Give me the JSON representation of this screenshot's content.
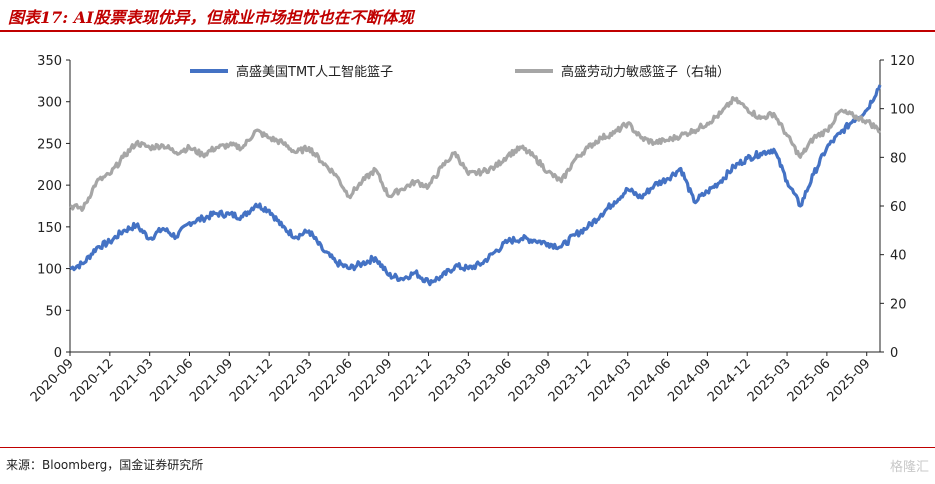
{
  "header": {
    "title": "图表17: AI股票表现优异，但就业市场担忧也在不断体现"
  },
  "footer": {
    "source": "来源：Bloomberg，国金证券研究所",
    "watermark": "格隆汇"
  },
  "colors": {
    "blue": "#4472c4",
    "gray": "#a6a6a6",
    "accent": "#c00000"
  },
  "chart_data": {
    "type": "line",
    "title": "",
    "xlabel": "",
    "ylabel": "",
    "y_left": {
      "ylim": [
        0,
        350
      ],
      "ticks": [
        "0",
        "50",
        "100",
        "150",
        "200",
        "250",
        "300",
        "350"
      ]
    },
    "y_right": {
      "ylim": [
        0,
        120
      ],
      "ticks": [
        "0",
        "20",
        "40",
        "60",
        "80",
        "100",
        "120"
      ]
    },
    "x_range": [
      "2020-09",
      "2025-10"
    ],
    "x_ticks": [
      "2020-09",
      "2020-12",
      "2021-03",
      "2021-06",
      "2021-09",
      "2021-12",
      "2022-03",
      "2022-06",
      "2022-09",
      "2022-12",
      "2023-03",
      "2023-06",
      "2023-09",
      "2023-12",
      "2024-03",
      "2024-06",
      "2024-09",
      "2024-12",
      "2025-03",
      "2025-06",
      "2025-09"
    ],
    "grid": false,
    "legend": "top-center",
    "series": [
      {
        "name": "高盛美国TMT人工智能篮子",
        "axis": "left",
        "points": [
          [
            "2020-09",
            100
          ],
          [
            "2020-10",
            106
          ],
          [
            "2020-11",
            125
          ],
          [
            "2020-12",
            132
          ],
          [
            "2021-01",
            145
          ],
          [
            "2021-02",
            152
          ],
          [
            "2021-03",
            136
          ],
          [
            "2021-04",
            148
          ],
          [
            "2021-05",
            138
          ],
          [
            "2021-06",
            155
          ],
          [
            "2021-07",
            160
          ],
          [
            "2021-08",
            166
          ],
          [
            "2021-09",
            165
          ],
          [
            "2021-10",
            162
          ],
          [
            "2021-11",
            177
          ],
          [
            "2021-12",
            170
          ],
          [
            "2022-01",
            150
          ],
          [
            "2022-02",
            138
          ],
          [
            "2022-03",
            145
          ],
          [
            "2022-04",
            123
          ],
          [
            "2022-05",
            108
          ],
          [
            "2022-06",
            100
          ],
          [
            "2022-07",
            106
          ],
          [
            "2022-08",
            113
          ],
          [
            "2022-09",
            92
          ],
          [
            "2022-10",
            88
          ],
          [
            "2022-11",
            95
          ],
          [
            "2022-12",
            84
          ],
          [
            "2023-01",
            90
          ],
          [
            "2023-02",
            103
          ],
          [
            "2023-03",
            100
          ],
          [
            "2023-04",
            106
          ],
          [
            "2023-05",
            120
          ],
          [
            "2023-06",
            133
          ],
          [
            "2023-07",
            136
          ],
          [
            "2023-08",
            134
          ],
          [
            "2023-09",
            130
          ],
          [
            "2023-10",
            126
          ],
          [
            "2023-11",
            140
          ],
          [
            "2023-12",
            150
          ],
          [
            "2024-01",
            165
          ],
          [
            "2024-02",
            180
          ],
          [
            "2024-03",
            195
          ],
          [
            "2024-04",
            185
          ],
          [
            "2024-05",
            200
          ],
          [
            "2024-06",
            208
          ],
          [
            "2024-07",
            220
          ],
          [
            "2024-08",
            180
          ],
          [
            "2024-09",
            192
          ],
          [
            "2024-10",
            205
          ],
          [
            "2024-11",
            222
          ],
          [
            "2024-12",
            232
          ],
          [
            "2025-01",
            238
          ],
          [
            "2025-02",
            243
          ],
          [
            "2025-03",
            205
          ],
          [
            "2025-04",
            175
          ],
          [
            "2025-05",
            213
          ],
          [
            "2025-06",
            245
          ],
          [
            "2025-07",
            262
          ],
          [
            "2025-08",
            278
          ],
          [
            "2025-09",
            290
          ],
          [
            "2025-10",
            320
          ]
        ]
      },
      {
        "name": "高盛劳动力敏感篮子（右轴）",
        "axis": "right",
        "points": [
          [
            "2020-09",
            60
          ],
          [
            "2020-10",
            59
          ],
          [
            "2020-11",
            70
          ],
          [
            "2020-12",
            73
          ],
          [
            "2021-01",
            80
          ],
          [
            "2021-02",
            86
          ],
          [
            "2021-03",
            84
          ],
          [
            "2021-04",
            85
          ],
          [
            "2021-05",
            82
          ],
          [
            "2021-06",
            84
          ],
          [
            "2021-07",
            81
          ],
          [
            "2021-08",
            84
          ],
          [
            "2021-09",
            85
          ],
          [
            "2021-10",
            84
          ],
          [
            "2021-11",
            91
          ],
          [
            "2021-12",
            88
          ],
          [
            "2022-01",
            86
          ],
          [
            "2022-02",
            82
          ],
          [
            "2022-03",
            84
          ],
          [
            "2022-04",
            78
          ],
          [
            "2022-05",
            73
          ],
          [
            "2022-06",
            64
          ],
          [
            "2022-07",
            70
          ],
          [
            "2022-08",
            75
          ],
          [
            "2022-09",
            64
          ],
          [
            "2022-10",
            67
          ],
          [
            "2022-11",
            70
          ],
          [
            "2022-12",
            68
          ],
          [
            "2023-01",
            76
          ],
          [
            "2023-02",
            82
          ],
          [
            "2023-03",
            73
          ],
          [
            "2023-04",
            74
          ],
          [
            "2023-05",
            76
          ],
          [
            "2023-06",
            81
          ],
          [
            "2023-07",
            84
          ],
          [
            "2023-08",
            80
          ],
          [
            "2023-09",
            74
          ],
          [
            "2023-10",
            70
          ],
          [
            "2023-11",
            79
          ],
          [
            "2023-12",
            84
          ],
          [
            "2024-01",
            88
          ],
          [
            "2024-02",
            90
          ],
          [
            "2024-03",
            94
          ],
          [
            "2024-04",
            88
          ],
          [
            "2024-05",
            86
          ],
          [
            "2024-06",
            87
          ],
          [
            "2024-07",
            89
          ],
          [
            "2024-08",
            91
          ],
          [
            "2024-09",
            94
          ],
          [
            "2024-10",
            98
          ],
          [
            "2024-11",
            104
          ],
          [
            "2024-12",
            100
          ],
          [
            "2025-01",
            96
          ],
          [
            "2025-02",
            98
          ],
          [
            "2025-03",
            89
          ],
          [
            "2025-04",
            80
          ],
          [
            "2025-05",
            88
          ],
          [
            "2025-06",
            91
          ],
          [
            "2025-07",
            99
          ],
          [
            "2025-08",
            97
          ],
          [
            "2025-09",
            95
          ],
          [
            "2025-10",
            91
          ]
        ]
      }
    ]
  }
}
